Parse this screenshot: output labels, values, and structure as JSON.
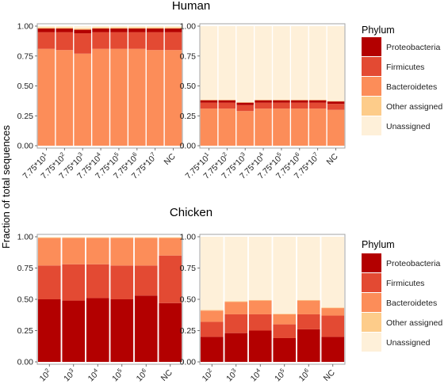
{
  "figure": {
    "ylabel": "Fraction of total sequences",
    "legend_title": "Phylum",
    "legend_entries": [
      {
        "name": "Proteobacteria",
        "color": "#b30000"
      },
      {
        "name": "Firmicutes",
        "color": "#e34a33"
      },
      {
        "name": "Bacteroidetes",
        "color": "#fc8d59"
      },
      {
        "name": "Other assigned",
        "color": "#fdcc8a"
      },
      {
        "name": "Unassigned",
        "color": "#fef0d9"
      }
    ]
  },
  "chart_data": [
    {
      "type": "bar",
      "stacked": true,
      "panel": "top-left",
      "title": "Human",
      "ylabel": "Fraction of total sequences",
      "ylim": [
        0,
        1
      ],
      "yticks": [
        "0.00",
        "0.25",
        "0.50",
        "0.75",
        "1.00"
      ],
      "categories": [
        "7.75*10^1",
        "7.75*10^2",
        "7.75*10^3",
        "7.75*10^4",
        "7.75*10^5",
        "7.75*10^6",
        "7.75*10^7",
        "NC"
      ],
      "series": [
        {
          "name": "Bacteroidetes",
          "values": [
            0.81,
            0.8,
            0.77,
            0.81,
            0.81,
            0.81,
            0.8,
            0.8
          ]
        },
        {
          "name": "Firmicutes",
          "values": [
            0.14,
            0.15,
            0.17,
            0.14,
            0.14,
            0.14,
            0.15,
            0.15
          ]
        },
        {
          "name": "Proteobacteria",
          "values": [
            0.03,
            0.03,
            0.03,
            0.03,
            0.03,
            0.03,
            0.03,
            0.03
          ]
        },
        {
          "name": "Other assigned",
          "values": [
            0.01,
            0.01,
            0.01,
            0.01,
            0.01,
            0.01,
            0.01,
            0.01
          ]
        },
        {
          "name": "Unassigned",
          "values": [
            0.01,
            0.01,
            0.02,
            0.01,
            0.01,
            0.01,
            0.01,
            0.01
          ]
        }
      ]
    },
    {
      "type": "bar",
      "stacked": true,
      "panel": "top-right",
      "ylim": [
        0,
        1
      ],
      "yticks": [
        "0.00",
        "0.25",
        "0.50",
        "0.75",
        "1.00"
      ],
      "categories": [
        "7.75*10^1",
        "7.75*10^2",
        "7.75*10^3",
        "7.75*10^4",
        "7.75*10^5",
        "7.75*10^6",
        "7.75*10^7",
        "NC"
      ],
      "series": [
        {
          "name": "Bacteroidetes",
          "values": [
            0.31,
            0.31,
            0.29,
            0.31,
            0.31,
            0.31,
            0.31,
            0.3
          ]
        },
        {
          "name": "Firmicutes",
          "values": [
            0.05,
            0.05,
            0.05,
            0.05,
            0.05,
            0.05,
            0.05,
            0.05
          ]
        },
        {
          "name": "Proteobacteria",
          "values": [
            0.02,
            0.02,
            0.02,
            0.02,
            0.02,
            0.02,
            0.02,
            0.02
          ]
        },
        {
          "name": "Other assigned",
          "values": [
            0.005,
            0.005,
            0.005,
            0.005,
            0.005,
            0.005,
            0.005,
            0.005
          ]
        },
        {
          "name": "Unassigned",
          "values": [
            0.615,
            0.615,
            0.635,
            0.615,
            0.615,
            0.615,
            0.615,
            0.625
          ]
        }
      ]
    },
    {
      "type": "bar",
      "stacked": true,
      "panel": "bottom-left",
      "title": "Chicken",
      "ylabel": "Fraction of total sequences",
      "ylim": [
        0,
        1
      ],
      "yticks": [
        "0.00",
        "0.25",
        "0.50",
        "0.75",
        "1.00"
      ],
      "categories": [
        "10^2",
        "10^3",
        "10^4",
        "10^5",
        "10^6",
        "NC"
      ],
      "series": [
        {
          "name": "Proteobacteria",
          "values": [
            0.5,
            0.49,
            0.51,
            0.5,
            0.53,
            0.47
          ]
        },
        {
          "name": "Firmicutes",
          "values": [
            0.27,
            0.29,
            0.27,
            0.27,
            0.24,
            0.38
          ]
        },
        {
          "name": "Bacteroidetes",
          "values": [
            0.22,
            0.21,
            0.21,
            0.22,
            0.22,
            0.14
          ]
        },
        {
          "name": "Other assigned",
          "values": [
            0.005,
            0.005,
            0.005,
            0.005,
            0.005,
            0.005
          ]
        },
        {
          "name": "Unassigned",
          "values": [
            0.005,
            0.005,
            0.005,
            0.005,
            0.005,
            0.005
          ]
        }
      ]
    },
    {
      "type": "bar",
      "stacked": true,
      "panel": "bottom-right",
      "ylim": [
        0,
        1
      ],
      "yticks": [
        "0.00",
        "0.25",
        "0.50",
        "0.75",
        "1.00"
      ],
      "categories": [
        "10^2",
        "10^3",
        "10^4",
        "10^5",
        "10^6",
        "NC"
      ],
      "series": [
        {
          "name": "Proteobacteria",
          "values": [
            0.2,
            0.23,
            0.25,
            0.19,
            0.26,
            0.2
          ]
        },
        {
          "name": "Firmicutes",
          "values": [
            0.12,
            0.15,
            0.13,
            0.11,
            0.12,
            0.17
          ]
        },
        {
          "name": "Bacteroidetes",
          "values": [
            0.09,
            0.1,
            0.11,
            0.08,
            0.11,
            0.06
          ]
        },
        {
          "name": "Other assigned",
          "values": [
            0.005,
            0.005,
            0.005,
            0.005,
            0.005,
            0.005
          ]
        },
        {
          "name": "Unassigned",
          "values": [
            0.585,
            0.515,
            0.505,
            0.615,
            0.505,
            0.565
          ]
        }
      ]
    }
  ]
}
